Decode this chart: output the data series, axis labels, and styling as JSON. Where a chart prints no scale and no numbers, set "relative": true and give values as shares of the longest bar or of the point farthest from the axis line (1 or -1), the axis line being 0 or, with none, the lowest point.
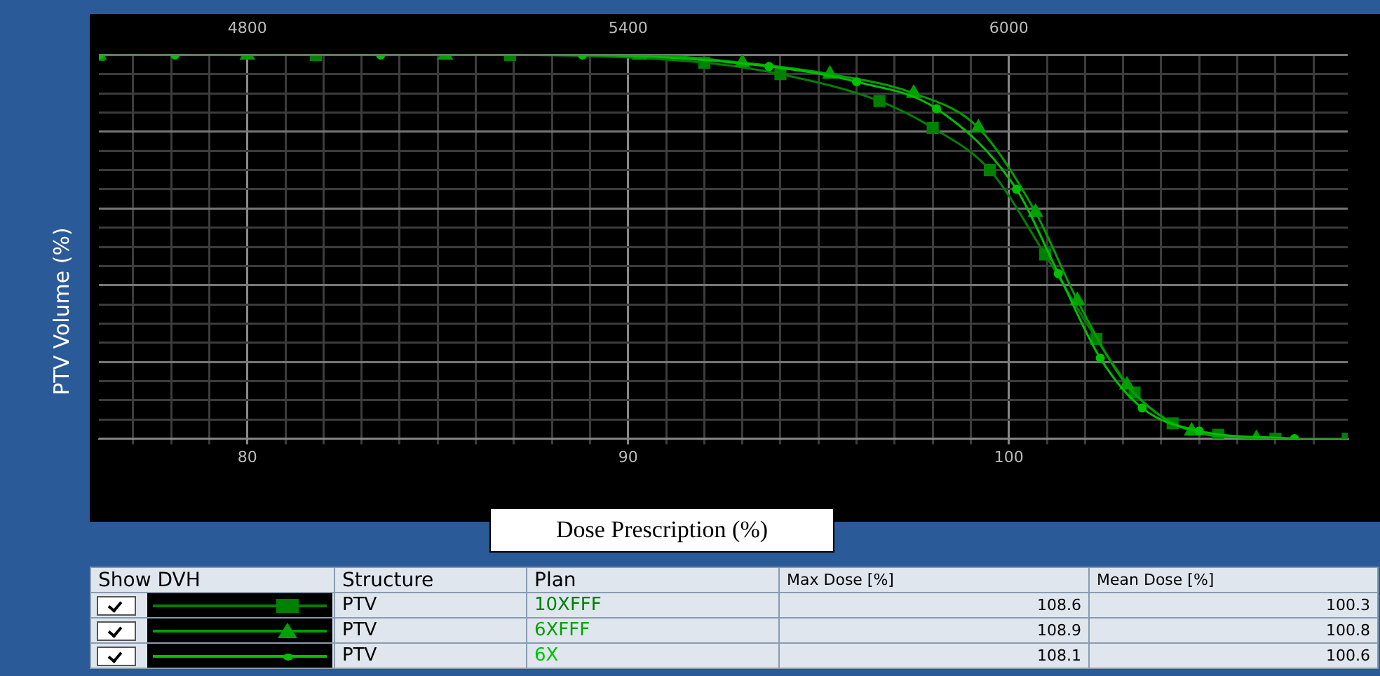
{
  "chart_data": {
    "type": "line",
    "xlabel": "Dose Prescription (%)",
    "ylabel": "PTV Volume (%)",
    "relative": true,
    "xlim": [
      76.1,
      108.9
    ],
    "xticks": [
      {
        "value": 77,
        "label": null
      },
      {
        "value": 78,
        "label": null
      },
      {
        "value": 79,
        "label": null
      },
      80,
      {
        "value": 81,
        "label": null
      },
      {
        "value": 82,
        "label": null
      },
      {
        "value": 83,
        "label": null
      },
      {
        "value": 84,
        "label": null
      },
      {
        "value": 85,
        "label": null
      },
      {
        "value": 86,
        "label": null
      },
      {
        "value": 87,
        "label": null
      },
      {
        "value": 88,
        "label": null
      },
      {
        "value": 89,
        "label": null
      },
      90,
      {
        "value": 91,
        "label": null
      },
      {
        "value": 92,
        "label": null
      },
      {
        "value": 93,
        "label": null
      },
      {
        "value": 94,
        "label": null
      },
      {
        "value": 95,
        "label": null
      },
      {
        "value": 96,
        "label": null
      },
      {
        "value": 97,
        "label": null
      },
      {
        "value": 98,
        "label": null
      },
      {
        "value": 99,
        "label": null
      },
      100,
      {
        "value": 101,
        "label": null
      },
      {
        "value": 102,
        "label": null
      },
      {
        "value": 103,
        "label": null
      },
      {
        "value": 104,
        "label": null
      },
      {
        "value": 105,
        "label": null
      },
      {
        "value": 106,
        "label": null
      },
      {
        "value": 107,
        "label": null
      },
      {
        "value": 108,
        "label": null
      }
    ],
    "x2lim": [
      4566,
      6534
    ],
    "x2ticks": [
      4800,
      5400,
      6000
    ],
    "grid": true,
    "legend": "bottom",
    "line_style": "solid",
    "series": [
      {
        "name": "10XFFF",
        "color": "#008000",
        "marker": "square",
        "x": [
          76.1,
          81.8,
          86.9,
          92.0,
          94.0,
          96.6,
          98.0,
          99.5,
          100.95,
          102.3,
          103.3,
          104.3,
          105.5,
          107.0,
          108.9
        ],
        "values": [
          1,
          1,
          1,
          0.98,
          0.95,
          0.88,
          0.81,
          0.7,
          0.48,
          0.26,
          0.12,
          0.04,
          0.01,
          0,
          0
        ]
      },
      {
        "name": "6XFFF",
        "color": "#00a000",
        "marker": "triangle",
        "x": [
          76.1,
          80.0,
          85.2,
          90.3,
          93.0,
          95.3,
          97.5,
          99.2,
          100.7,
          101.8,
          103.1,
          104.8,
          106.5
        ],
        "values": [
          1,
          1,
          1,
          1,
          0.98,
          0.95,
          0.9,
          0.81,
          0.59,
          0.36,
          0.14,
          0.02,
          0
        ]
      },
      {
        "name": "6X",
        "color": "#00c000",
        "marker": "circle",
        "x": [
          76.1,
          78.1,
          83.5,
          88.8,
          93.7,
          96.0,
          98.1,
          100.2,
          101.3,
          102.4,
          103.5,
          105.0,
          107.5
        ],
        "values": [
          1,
          1,
          1,
          1,
          0.97,
          0.93,
          0.86,
          0.65,
          0.43,
          0.21,
          0.08,
          0.02,
          0
        ]
      }
    ],
    "annotations": [
      "Show DVH",
      "Structure",
      "Plan",
      "Max Dose [%]",
      "Mean Dose [%]",
      "PTV",
      "108.6",
      "100.3",
      "PTV",
      "108.9",
      "100.8",
      "PTV",
      "108.1",
      "100.6"
    ]
  }
}
